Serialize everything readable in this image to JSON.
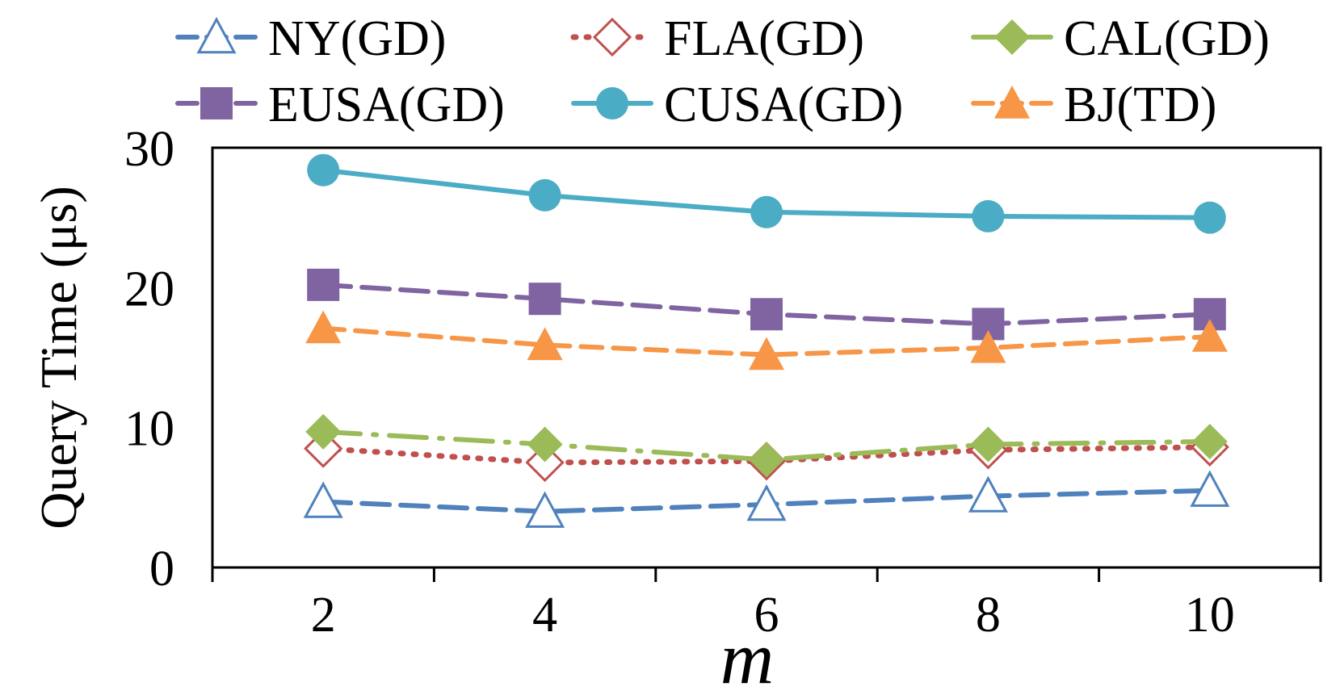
{
  "chart_data": {
    "type": "line",
    "title": "",
    "xlabel": "m",
    "ylabel": "Query Time (μs)",
    "x": [
      2,
      4,
      6,
      8,
      10
    ],
    "xticks": [
      "2",
      "4",
      "6",
      "8",
      "10"
    ],
    "ylim": [
      0,
      30
    ],
    "yticks": [
      "0",
      "10",
      "20",
      "30"
    ],
    "grid": false,
    "legend_position": "top",
    "series": [
      {
        "name": "NY(GD)",
        "values": [
          4.7,
          4.0,
          4.5,
          5.1,
          5.5
        ],
        "color": "#4F81BD",
        "dash": "long-dash",
        "marker": "triangle-open"
      },
      {
        "name": "FLA(GD)",
        "values": [
          8.5,
          7.5,
          7.6,
          8.4,
          8.6
        ],
        "color": "#C0504D",
        "dash": "dot",
        "marker": "diamond-open"
      },
      {
        "name": "CAL(GD)",
        "values": [
          9.7,
          8.8,
          7.7,
          8.8,
          9.0
        ],
        "color": "#9BBB59",
        "dash": "long-dash-dot",
        "marker": "diamond"
      },
      {
        "name": "EUSA(GD)",
        "values": [
          20.2,
          19.2,
          18.1,
          17.4,
          18.1
        ],
        "color": "#8064A2",
        "dash": "long-dash",
        "marker": "square"
      },
      {
        "name": "CUSA(GD)",
        "values": [
          28.4,
          26.6,
          25.4,
          25.1,
          25.0
        ],
        "color": "#4BACC6",
        "dash": "solid",
        "marker": "circle"
      },
      {
        "name": "BJ(TD)",
        "values": [
          17.1,
          15.9,
          15.2,
          15.7,
          16.5
        ],
        "color": "#F79646",
        "dash": "dash",
        "marker": "triangle"
      }
    ]
  }
}
